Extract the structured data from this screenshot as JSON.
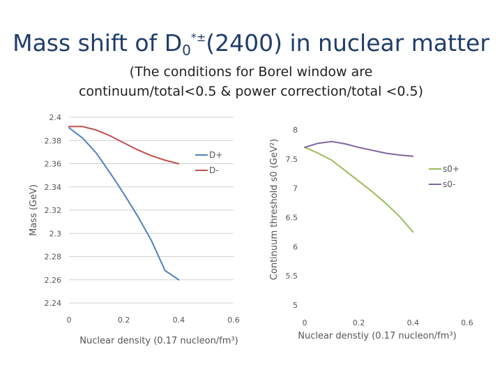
{
  "title": {
    "main": "Mass shift of D",
    "sub": "0",
    "sup": "*±",
    "rest": "(2400) in nuclear matter"
  },
  "subtitle": {
    "line1": "(The conditions for Borel window are",
    "line2": "continuum/total<0.5 & power correction/total <0.5)"
  },
  "chart_data": [
    {
      "type": "line",
      "title": "",
      "xlabel": "Nuclear density (0.17 nucleon/fm³)",
      "ylabel": "Mass (GeV)",
      "xlim": [
        0,
        0.6
      ],
      "ylim": [
        2.24,
        2.4
      ],
      "xticks": [
        "0",
        "0.2",
        "0.4",
        "0.6"
      ],
      "yticks": [
        "2.4",
        "2.38",
        "2.36",
        "2.34",
        "2.32",
        "2.3",
        "2.28",
        "2.26",
        "2.24"
      ],
      "grid": true,
      "legend": "right",
      "series": [
        {
          "name": "D+",
          "color": "#4f81bd",
          "x": [
            0,
            0.05,
            0.1,
            0.15,
            0.2,
            0.25,
            0.3,
            0.35,
            0.4
          ],
          "y": [
            2.391,
            2.382,
            2.369,
            2.352,
            2.334,
            2.315,
            2.294,
            2.268,
            2.26
          ]
        },
        {
          "name": "D-",
          "color": "#c0504d",
          "x": [
            0,
            0.05,
            0.1,
            0.15,
            0.2,
            0.25,
            0.3,
            0.35,
            0.4
          ],
          "y": [
            2.392,
            2.392,
            2.389,
            2.384,
            2.378,
            2.372,
            2.367,
            2.363,
            2.36
          ]
        }
      ]
    },
    {
      "type": "line",
      "title": "",
      "xlabel": "Nuclear denstiy (0.17 nucleon/fm³)",
      "ylabel": "Continuum threshold s0 (GeV²)",
      "xlim": [
        0,
        0.6
      ],
      "ylim": [
        5,
        8
      ],
      "xticks": [
        "0",
        "0.2",
        "0.4",
        "0.6"
      ],
      "yticks": [
        "8",
        "7.5",
        "7",
        "6.5",
        "6",
        "5.5",
        "5"
      ],
      "grid": false,
      "legend": "right",
      "series": [
        {
          "name": "s0+",
          "color": "#9bbb59",
          "x": [
            0,
            0.05,
            0.1,
            0.15,
            0.2,
            0.25,
            0.3,
            0.35,
            0.4
          ],
          "y": [
            7.7,
            7.6,
            7.48,
            7.3,
            7.12,
            6.94,
            6.74,
            6.52,
            6.25
          ]
        },
        {
          "name": "s0-",
          "color": "#8064a2",
          "x": [
            0,
            0.05,
            0.1,
            0.15,
            0.2,
            0.25,
            0.3,
            0.35,
            0.4
          ],
          "y": [
            7.7,
            7.77,
            7.8,
            7.76,
            7.7,
            7.65,
            7.6,
            7.57,
            7.55
          ]
        }
      ]
    }
  ]
}
